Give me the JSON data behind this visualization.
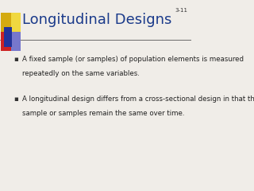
{
  "title": "Longitudinal Designs",
  "slide_number": "3-11",
  "background_color": "#f0ede8",
  "title_color": "#1a3a8a",
  "title_fontsize": 13,
  "separator_color": "#555555",
  "body_color": "#222222",
  "body_fontsize": 6.2,
  "bullet1_line1": "A fixed sample (or samples) of population elements is measured",
  "bullet1_line2": "repeatedly on the same variables.",
  "bullet2_line1": "A longitudinal design differs from a cross-sectional design in that the",
  "bullet2_line2": "sample or samples remain the same over time.",
  "slide_num_color": "#333333",
  "slide_num_fontsize": 5,
  "bullet_color": "#333333",
  "bullet_char": "▪"
}
